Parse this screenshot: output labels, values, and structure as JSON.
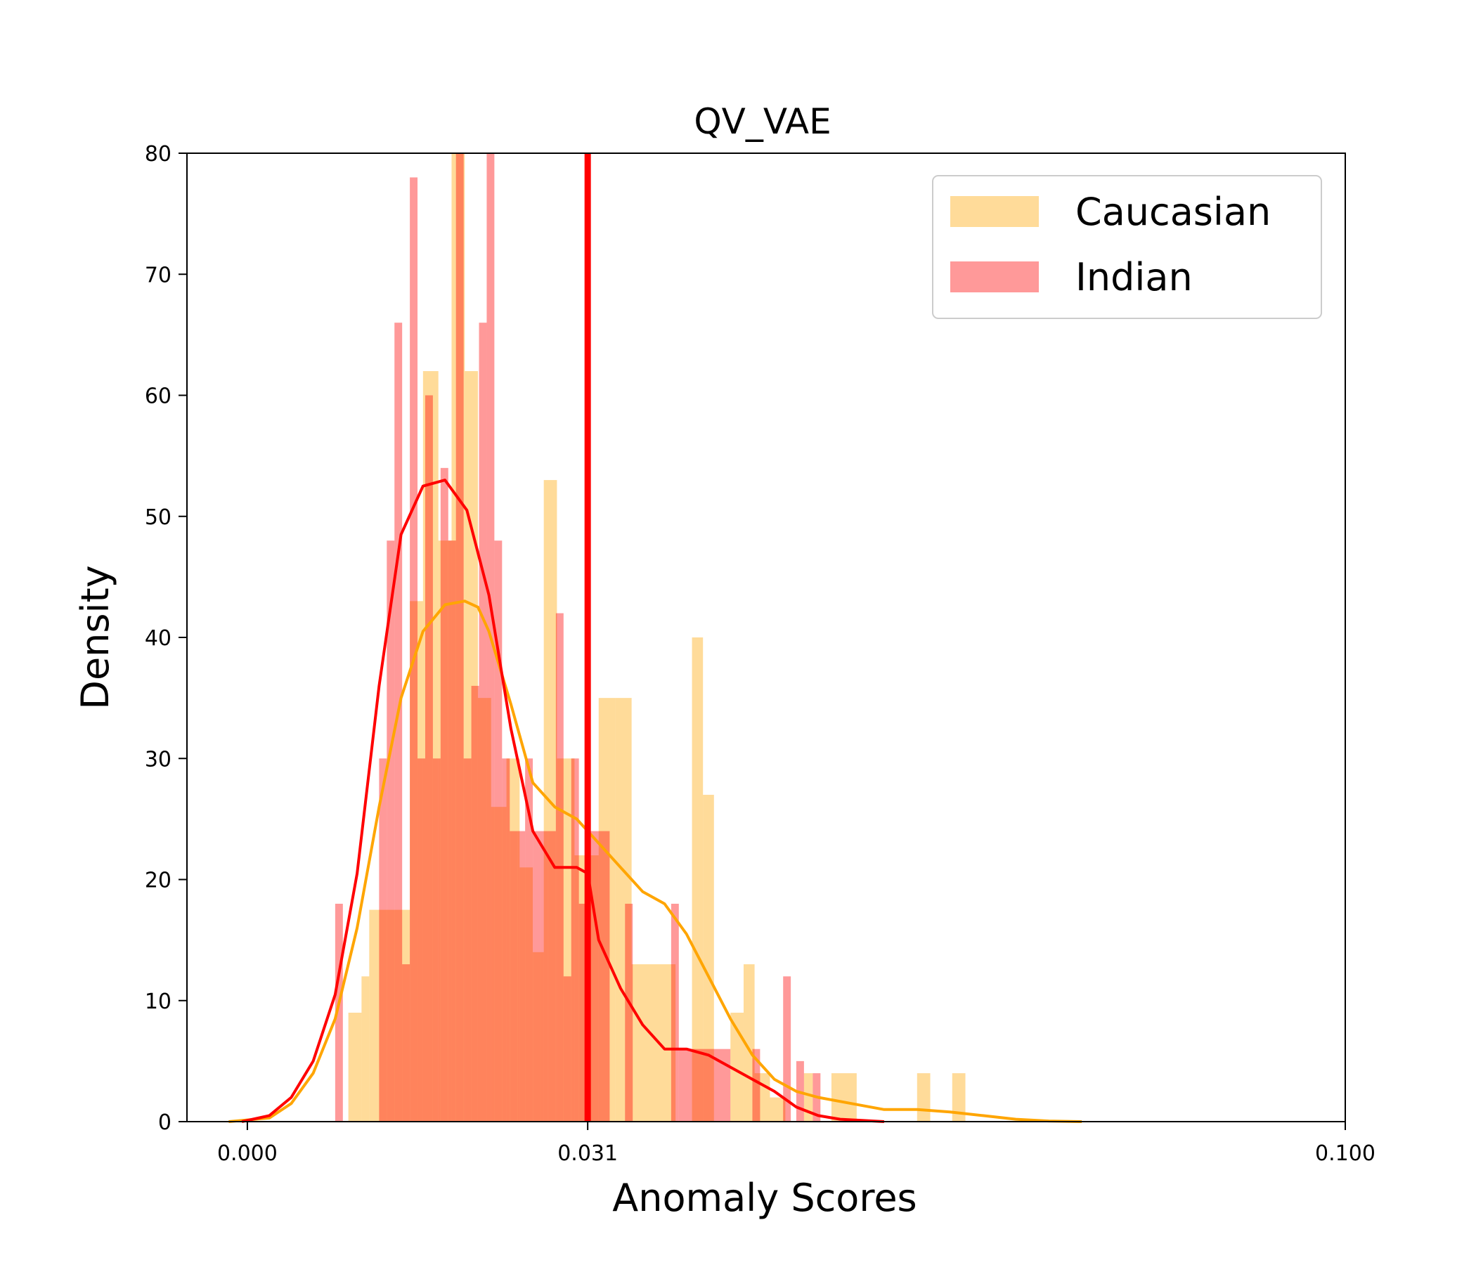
{
  "chart_data": {
    "type": "bar",
    "title": "QV_VAE",
    "xlabel": "Anomaly Scores",
    "ylabel": "Density",
    "xlim": [
      -0.0055,
      0.1
    ],
    "ylim": [
      0,
      80
    ],
    "xticks": [
      {
        "value": 0.0,
        "label": "0.000"
      },
      {
        "value": 0.031,
        "label": "0.031"
      },
      {
        "value": 0.1,
        "label": "0.100"
      }
    ],
    "yticks": [
      {
        "value": 0,
        "label": "0"
      },
      {
        "value": 10,
        "label": "10"
      },
      {
        "value": 20,
        "label": "20"
      },
      {
        "value": 30,
        "label": "30"
      },
      {
        "value": 40,
        "label": "40"
      },
      {
        "value": 50,
        "label": "50"
      },
      {
        "value": 60,
        "label": "60"
      },
      {
        "value": 70,
        "label": "70"
      },
      {
        "value": 80,
        "label": "80"
      }
    ],
    "threshold": {
      "x": 0.031,
      "color": "#ff0000"
    },
    "legend": {
      "position": "top-right"
    },
    "grid": false,
    "series": [
      {
        "name": "Caucasian",
        "color": "#ffa500",
        "bins": [
          {
            "x0": -0.0017,
            "x1": 0.0,
            "y": 0
          },
          {
            "x0": 0.0092,
            "x1": 0.0104,
            "y": 9
          },
          {
            "x0": 0.0104,
            "x1": 0.0111,
            "y": 12
          },
          {
            "x0": 0.0111,
            "x1": 0.0122,
            "y": 17.5
          },
          {
            "x0": 0.0122,
            "x1": 0.0148,
            "y": 17.5
          },
          {
            "x0": 0.0148,
            "x1": 0.016,
            "y": 43
          },
          {
            "x0": 0.016,
            "x1": 0.0174,
            "y": 62
          },
          {
            "x0": 0.0174,
            "x1": 0.0186,
            "y": 48
          },
          {
            "x0": 0.0186,
            "x1": 0.0198,
            "y": 80
          },
          {
            "x0": 0.0198,
            "x1": 0.021,
            "y": 62
          },
          {
            "x0": 0.021,
            "x1": 0.0222,
            "y": 35
          },
          {
            "x0": 0.0222,
            "x1": 0.0236,
            "y": 26
          },
          {
            "x0": 0.0236,
            "x1": 0.0248,
            "y": 30
          },
          {
            "x0": 0.0248,
            "x1": 0.026,
            "y": 21
          },
          {
            "x0": 0.026,
            "x1": 0.027,
            "y": 14
          },
          {
            "x0": 0.027,
            "x1": 0.0282,
            "y": 53
          },
          {
            "x0": 0.0282,
            "x1": 0.0298,
            "y": 30
          },
          {
            "x0": 0.0298,
            "x1": 0.032,
            "y": 22
          },
          {
            "x0": 0.032,
            "x1": 0.0335,
            "y": 35
          },
          {
            "x0": 0.0335,
            "x1": 0.035,
            "y": 35
          },
          {
            "x0": 0.035,
            "x1": 0.039,
            "y": 13
          },
          {
            "x0": 0.0405,
            "x1": 0.0415,
            "y": 40
          },
          {
            "x0": 0.0415,
            "x1": 0.0425,
            "y": 27
          },
          {
            "x0": 0.044,
            "x1": 0.0452,
            "y": 9
          },
          {
            "x0": 0.0452,
            "x1": 0.0462,
            "y": 13
          },
          {
            "x0": 0.0462,
            "x1": 0.0476,
            "y": 4
          },
          {
            "x0": 0.0476,
            "x1": 0.049,
            "y": 2
          },
          {
            "x0": 0.0507,
            "x1": 0.0515,
            "y": 4
          },
          {
            "x0": 0.0532,
            "x1": 0.0555,
            "y": 4
          },
          {
            "x0": 0.061,
            "x1": 0.0622,
            "y": 4
          },
          {
            "x0": 0.0642,
            "x1": 0.0654,
            "y": 4
          }
        ],
        "kde": {
          "x": [
            -0.0017,
            0.002,
            0.004,
            0.006,
            0.008,
            0.01,
            0.012,
            0.014,
            0.016,
            0.018,
            0.0198,
            0.021,
            0.022,
            0.024,
            0.026,
            0.028,
            0.03,
            0.032,
            0.034,
            0.036,
            0.038,
            0.04,
            0.042,
            0.044,
            0.046,
            0.048,
            0.05,
            0.052,
            0.055,
            0.058,
            0.061,
            0.064,
            0.067,
            0.07,
            0.073,
            0.076
          ],
          "y": [
            0,
            0.3,
            1.5,
            4,
            8.5,
            16,
            26,
            35,
            40.5,
            42.7,
            43,
            42.5,
            40.5,
            34.5,
            28,
            26,
            25,
            23,
            21,
            19,
            18,
            15.5,
            12,
            8.5,
            5.5,
            3.5,
            2.5,
            2,
            1.5,
            1,
            1,
            0.8,
            0.5,
            0.2,
            0.05,
            0
          ]
        }
      },
      {
        "name": "Indian",
        "color": "#ff0000",
        "bins": [
          {
            "x0": 0.008,
            "x1": 0.0087,
            "y": 18
          },
          {
            "x0": 0.012,
            "x1": 0.0127,
            "y": 30
          },
          {
            "x0": 0.0127,
            "x1": 0.0134,
            "y": 48
          },
          {
            "x0": 0.0134,
            "x1": 0.0141,
            "y": 66
          },
          {
            "x0": 0.0141,
            "x1": 0.0148,
            "y": 13
          },
          {
            "x0": 0.0148,
            "x1": 0.0155,
            "y": 78
          },
          {
            "x0": 0.0155,
            "x1": 0.0162,
            "y": 30
          },
          {
            "x0": 0.0162,
            "x1": 0.0169,
            "y": 60
          },
          {
            "x0": 0.0169,
            "x1": 0.0176,
            "y": 30
          },
          {
            "x0": 0.0176,
            "x1": 0.0183,
            "y": 54
          },
          {
            "x0": 0.0183,
            "x1": 0.019,
            "y": 48
          },
          {
            "x0": 0.019,
            "x1": 0.0197,
            "y": 80
          },
          {
            "x0": 0.0197,
            "x1": 0.0204,
            "y": 30
          },
          {
            "x0": 0.0204,
            "x1": 0.0211,
            "y": 36
          },
          {
            "x0": 0.0211,
            "x1": 0.0218,
            "y": 66
          },
          {
            "x0": 0.0218,
            "x1": 0.0225,
            "y": 80
          },
          {
            "x0": 0.0225,
            "x1": 0.0232,
            "y": 48
          },
          {
            "x0": 0.0232,
            "x1": 0.0239,
            "y": 30
          },
          {
            "x0": 0.0239,
            "x1": 0.0246,
            "y": 24
          },
          {
            "x0": 0.0246,
            "x1": 0.0253,
            "y": 24
          },
          {
            "x0": 0.0253,
            "x1": 0.026,
            "y": 30
          },
          {
            "x0": 0.026,
            "x1": 0.0267,
            "y": 24
          },
          {
            "x0": 0.0267,
            "x1": 0.0274,
            "y": 24
          },
          {
            "x0": 0.0274,
            "x1": 0.0281,
            "y": 24
          },
          {
            "x0": 0.0281,
            "x1": 0.0288,
            "y": 42
          },
          {
            "x0": 0.0288,
            "x1": 0.0295,
            "y": 12
          },
          {
            "x0": 0.0295,
            "x1": 0.0302,
            "y": 30
          },
          {
            "x0": 0.0302,
            "x1": 0.0309,
            "y": 18
          },
          {
            "x0": 0.0309,
            "x1": 0.033,
            "y": 24
          },
          {
            "x0": 0.0344,
            "x1": 0.0351,
            "y": 18
          },
          {
            "x0": 0.0386,
            "x1": 0.0393,
            "y": 18
          },
          {
            "x0": 0.0393,
            "x1": 0.044,
            "y": 6
          },
          {
            "x0": 0.046,
            "x1": 0.0467,
            "y": 6
          },
          {
            "x0": 0.0488,
            "x1": 0.0495,
            "y": 12
          },
          {
            "x0": 0.05,
            "x1": 0.0507,
            "y": 5
          },
          {
            "x0": 0.0515,
            "x1": 0.0522,
            "y": 4
          }
        ],
        "kde": {
          "x": [
            -0.0005,
            0.002,
            0.004,
            0.006,
            0.008,
            0.01,
            0.012,
            0.014,
            0.016,
            0.018,
            0.02,
            0.022,
            0.024,
            0.026,
            0.028,
            0.03,
            0.031,
            0.032,
            0.034,
            0.036,
            0.038,
            0.04,
            0.042,
            0.044,
            0.046,
            0.048,
            0.05,
            0.052,
            0.054,
            0.056,
            0.058
          ],
          "y": [
            0,
            0.5,
            2,
            5,
            10.5,
            20.5,
            36,
            48.5,
            52.5,
            53,
            50.5,
            43.5,
            32.5,
            24,
            21,
            21,
            20.5,
            15,
            11,
            8,
            6,
            6,
            5.5,
            4.5,
            3.5,
            2.5,
            1.2,
            0.5,
            0.2,
            0.1,
            0
          ]
        }
      }
    ]
  }
}
